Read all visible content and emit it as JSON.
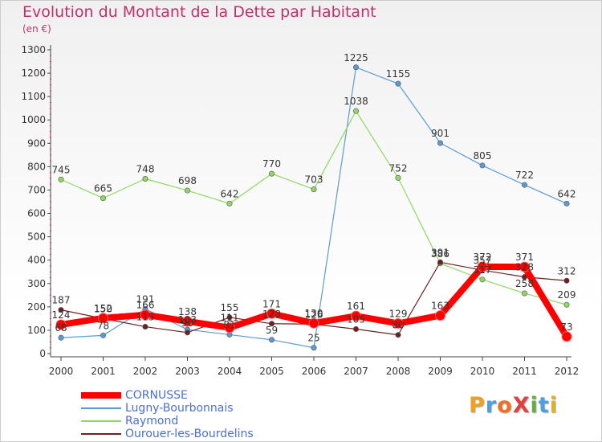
{
  "chart_data": {
    "type": "line",
    "title": "Evolution du Montant de la Dette par Habitant",
    "unit_label": "(en €)",
    "x": [
      "2000",
      "2001",
      "2002",
      "2003",
      "2004",
      "2005",
      "2006",
      "2007",
      "2008",
      "2009",
      "2010",
      "2011",
      "2012"
    ],
    "ylim": [
      0,
      1300
    ],
    "yticks": [
      0,
      100,
      200,
      300,
      400,
      500,
      600,
      700,
      800,
      900,
      1000,
      1100,
      1200,
      1300
    ],
    "grid": false,
    "legend_position": "bottom-left",
    "series": [
      {
        "name": "CORNUSSE",
        "color": "#ff0000",
        "values": [
          124,
          152,
          166,
          138,
          111,
          171,
          130,
          161,
          129,
          163,
          372,
          371,
          73
        ]
      },
      {
        "name": "Lugny-Bourbonnais",
        "color": "#5b9bd5",
        "values": [
          68,
          78,
          191,
          103,
          81,
          59,
          25,
          1225,
          1155,
          901,
          805,
          722,
          642
        ]
      },
      {
        "name": "Raymond",
        "color": "#90d860",
        "values": [
          745,
          665,
          748,
          698,
          642,
          770,
          703,
          1038,
          752,
          386,
          317,
          258,
          209
        ]
      },
      {
        "name": "Ourouer-les-Bourdelins",
        "color": "#702020",
        "values": [
          187,
          150,
          115,
          90,
          155,
          128,
          126,
          105,
          80,
          391,
          357,
          328,
          312
        ]
      }
    ]
  },
  "logo": {
    "text": "ProXiti"
  }
}
